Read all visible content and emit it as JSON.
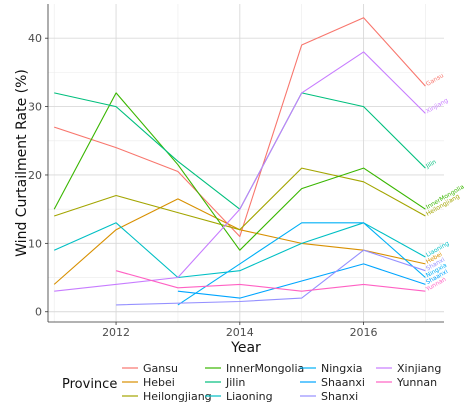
{
  "chart_data": {
    "type": "line",
    "xlabel": "Year",
    "ylabel": "Wind Curtailment Rate (%)",
    "xlim": [
      2010.9,
      2017.3
    ],
    "ylim": [
      -1.5,
      45
    ],
    "x_ticks": [
      2012,
      2014,
      2016
    ],
    "y_ticks": [
      0,
      10,
      20,
      30,
      40
    ],
    "grid": true,
    "legend": {
      "title": "Province",
      "position": "bottom"
    },
    "series": [
      {
        "name": "Gansu",
        "color": "#F8766D",
        "x": [
          2011,
          2012,
          2013,
          2014,
          2015,
          2016,
          2017
        ],
        "y": [
          27,
          24,
          20.5,
          11,
          39,
          43,
          33
        ],
        "end_label": "Gansu"
      },
      {
        "name": "Hebei",
        "color": "#D89000",
        "x": [
          2011,
          2012,
          2013,
          2014,
          2015,
          2016,
          2017
        ],
        "y": [
          4,
          12,
          16.5,
          12,
          10,
          9,
          7
        ],
        "end_label": "Hebei"
      },
      {
        "name": "Heilongjiang",
        "color": "#A3A500",
        "x": [
          2011,
          2012,
          2013,
          2014,
          2015,
          2016,
          2017
        ],
        "y": [
          14,
          17,
          14.5,
          12,
          21,
          19,
          14
        ],
        "end_label": "Heilongjiang"
      },
      {
        "name": "InnerMongolia",
        "color": "#39B600",
        "x": [
          2011,
          2012,
          2013,
          2014,
          2015,
          2016,
          2017
        ],
        "y": [
          15,
          32,
          21.5,
          9,
          18,
          21,
          15
        ],
        "end_label": "InnerMongolia"
      },
      {
        "name": "Jilin",
        "color": "#00BF7D",
        "x": [
          2011,
          2012,
          2013,
          2014,
          2015,
          2016,
          2017
        ],
        "y": [
          32,
          30,
          22,
          15,
          32,
          30,
          21
        ],
        "end_label": "Jilin"
      },
      {
        "name": "Liaoning",
        "color": "#00BFC4",
        "x": [
          2011,
          2012,
          2013,
          2014,
          2015,
          2016,
          2017
        ],
        "y": [
          9,
          13,
          5,
          6,
          10,
          13,
          8
        ],
        "end_label": "Liaoning"
      },
      {
        "name": "Ningxia",
        "color": "#00B0F6",
        "x": [
          2013,
          2014,
          2015,
          2016,
          2017
        ],
        "y": [
          1,
          7,
          13,
          13,
          5
        ],
        "end_label": "Ningxia"
      },
      {
        "name": "Shaanxi",
        "color": "#00A5FF",
        "x": [
          2013,
          2014,
          2016,
          2017
        ],
        "y": [
          3,
          2,
          7,
          4
        ],
        "end_label": "Shaanxi"
      },
      {
        "name": "Shanxi",
        "color": "#9590FF",
        "x": [
          2012,
          2014,
          2015,
          2016,
          2017
        ],
        "y": [
          1,
          1.5,
          2,
          9,
          6
        ],
        "end_label": "Shanxi"
      },
      {
        "name": "Xinjiang",
        "color": "#C77CFF",
        "x": [
          2011,
          2013,
          2014,
          2015,
          2016,
          2017
        ],
        "y": [
          3,
          5,
          15,
          32,
          38,
          29
        ],
        "end_label": "Xinjiang"
      },
      {
        "name": "Yunnan",
        "color": "#FF61C3",
        "x": [
          2012,
          2013,
          2014,
          2015,
          2016,
          2017
        ],
        "y": [
          6,
          3.5,
          4,
          3,
          4,
          3
        ],
        "end_label": "Yunnan"
      }
    ]
  }
}
